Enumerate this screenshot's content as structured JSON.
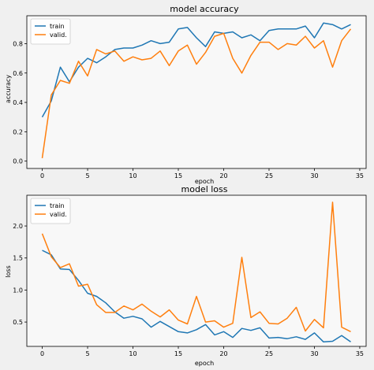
{
  "chart_data": [
    {
      "type": "line",
      "title": "model accuracy",
      "xlabel": "epoch",
      "ylabel": "accuracy",
      "xlim": [
        -1.7,
        35.7
      ],
      "ylim": [
        -0.05,
        0.99
      ],
      "xticks": [
        0,
        5,
        10,
        15,
        20,
        25,
        30,
        35
      ],
      "yticks": [
        0.0,
        0.2,
        0.4,
        0.6,
        0.8
      ],
      "ytick_labels": [
        "0.0",
        "0.2",
        "0.4",
        "0.6",
        "0.8"
      ],
      "grid": false,
      "legend_position": "top-left",
      "x": [
        0,
        1,
        2,
        3,
        4,
        5,
        6,
        7,
        8,
        9,
        10,
        11,
        12,
        13,
        14,
        15,
        16,
        17,
        18,
        19,
        20,
        21,
        22,
        23,
        24,
        25,
        26,
        27,
        28,
        29,
        30,
        31,
        32,
        33,
        34
      ],
      "series": [
        {
          "name": "train",
          "color": "#1f77b4",
          "values": [
            0.3,
            0.41,
            0.64,
            0.54,
            0.64,
            0.7,
            0.67,
            0.71,
            0.76,
            0.77,
            0.77,
            0.79,
            0.82,
            0.8,
            0.81,
            0.9,
            0.91,
            0.84,
            0.78,
            0.88,
            0.87,
            0.88,
            0.84,
            0.86,
            0.82,
            0.89,
            0.9,
            0.9,
            0.9,
            0.92,
            0.84,
            0.94,
            0.93,
            0.9,
            0.93
          ]
        },
        {
          "name": "valid.",
          "color": "#ff7f0e",
          "values": [
            0.02,
            0.45,
            0.55,
            0.53,
            0.68,
            0.58,
            0.76,
            0.73,
            0.75,
            0.68,
            0.71,
            0.69,
            0.7,
            0.75,
            0.65,
            0.75,
            0.79,
            0.66,
            0.74,
            0.85,
            0.87,
            0.7,
            0.6,
            0.72,
            0.81,
            0.81,
            0.76,
            0.8,
            0.79,
            0.85,
            0.77,
            0.82,
            0.64,
            0.82,
            0.9
          ]
        }
      ]
    },
    {
      "type": "line",
      "title": "model loss",
      "xlabel": "epoch",
      "ylabel": "loss",
      "xlim": [
        -1.7,
        35.7
      ],
      "ylim": [
        0.12,
        2.48
      ],
      "xticks": [
        0,
        5,
        10,
        15,
        20,
        25,
        30,
        35
      ],
      "yticks": [
        0.5,
        1.0,
        1.5,
        2.0
      ],
      "ytick_labels": [
        "0.5",
        "1.0",
        "1.5",
        "2.0"
      ],
      "grid": false,
      "legend_position": "top-left",
      "x": [
        0,
        1,
        2,
        3,
        4,
        5,
        6,
        7,
        8,
        9,
        10,
        11,
        12,
        13,
        14,
        15,
        16,
        17,
        18,
        19,
        20,
        21,
        22,
        23,
        24,
        25,
        26,
        27,
        28,
        29,
        30,
        31,
        32,
        33,
        34
      ],
      "series": [
        {
          "name": "train",
          "color": "#1f77b4",
          "values": [
            1.62,
            1.55,
            1.33,
            1.32,
            1.15,
            0.95,
            0.9,
            0.8,
            0.66,
            0.56,
            0.59,
            0.55,
            0.42,
            0.51,
            0.43,
            0.35,
            0.33,
            0.38,
            0.46,
            0.3,
            0.35,
            0.26,
            0.4,
            0.37,
            0.41,
            0.25,
            0.26,
            0.24,
            0.27,
            0.23,
            0.33,
            0.19,
            0.2,
            0.29,
            0.19
          ]
        },
        {
          "name": "valid.",
          "color": "#ff7f0e",
          "values": [
            1.88,
            1.52,
            1.35,
            1.41,
            1.06,
            1.09,
            0.77,
            0.65,
            0.65,
            0.75,
            0.69,
            0.78,
            0.67,
            0.58,
            0.69,
            0.53,
            0.47,
            0.9,
            0.5,
            0.52,
            0.42,
            0.48,
            1.51,
            0.57,
            0.66,
            0.48,
            0.47,
            0.56,
            0.73,
            0.36,
            0.54,
            0.41,
            2.37,
            0.42,
            0.35
          ]
        }
      ]
    }
  ]
}
